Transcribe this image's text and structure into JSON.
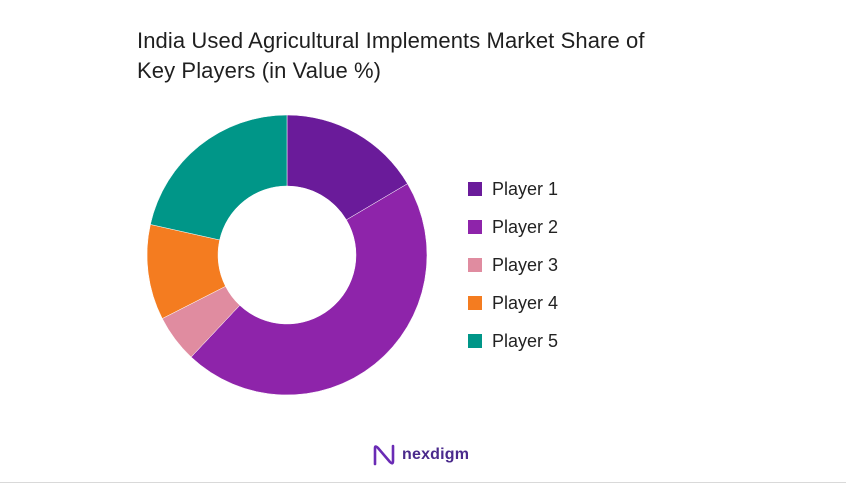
{
  "chart_data": {
    "type": "pie",
    "title_lines": [
      "India Used Agricultural Implements Market Share of",
      "Key Players (in Value %)"
    ],
    "donut": true,
    "legend_position": "right",
    "categories": [
      "Player 1",
      "Player 2",
      "Player 3",
      "Player 4",
      "Player 5"
    ],
    "values": [
      16.5,
      45.5,
      5.5,
      11,
      21.5
    ],
    "colors": [
      "#6a1b9a",
      "#8e24aa",
      "#e08ca0",
      "#f47c20",
      "#009688"
    ]
  },
  "branding": {
    "logo_text": "nexdigm",
    "logo_color": "#4a2a8c"
  }
}
